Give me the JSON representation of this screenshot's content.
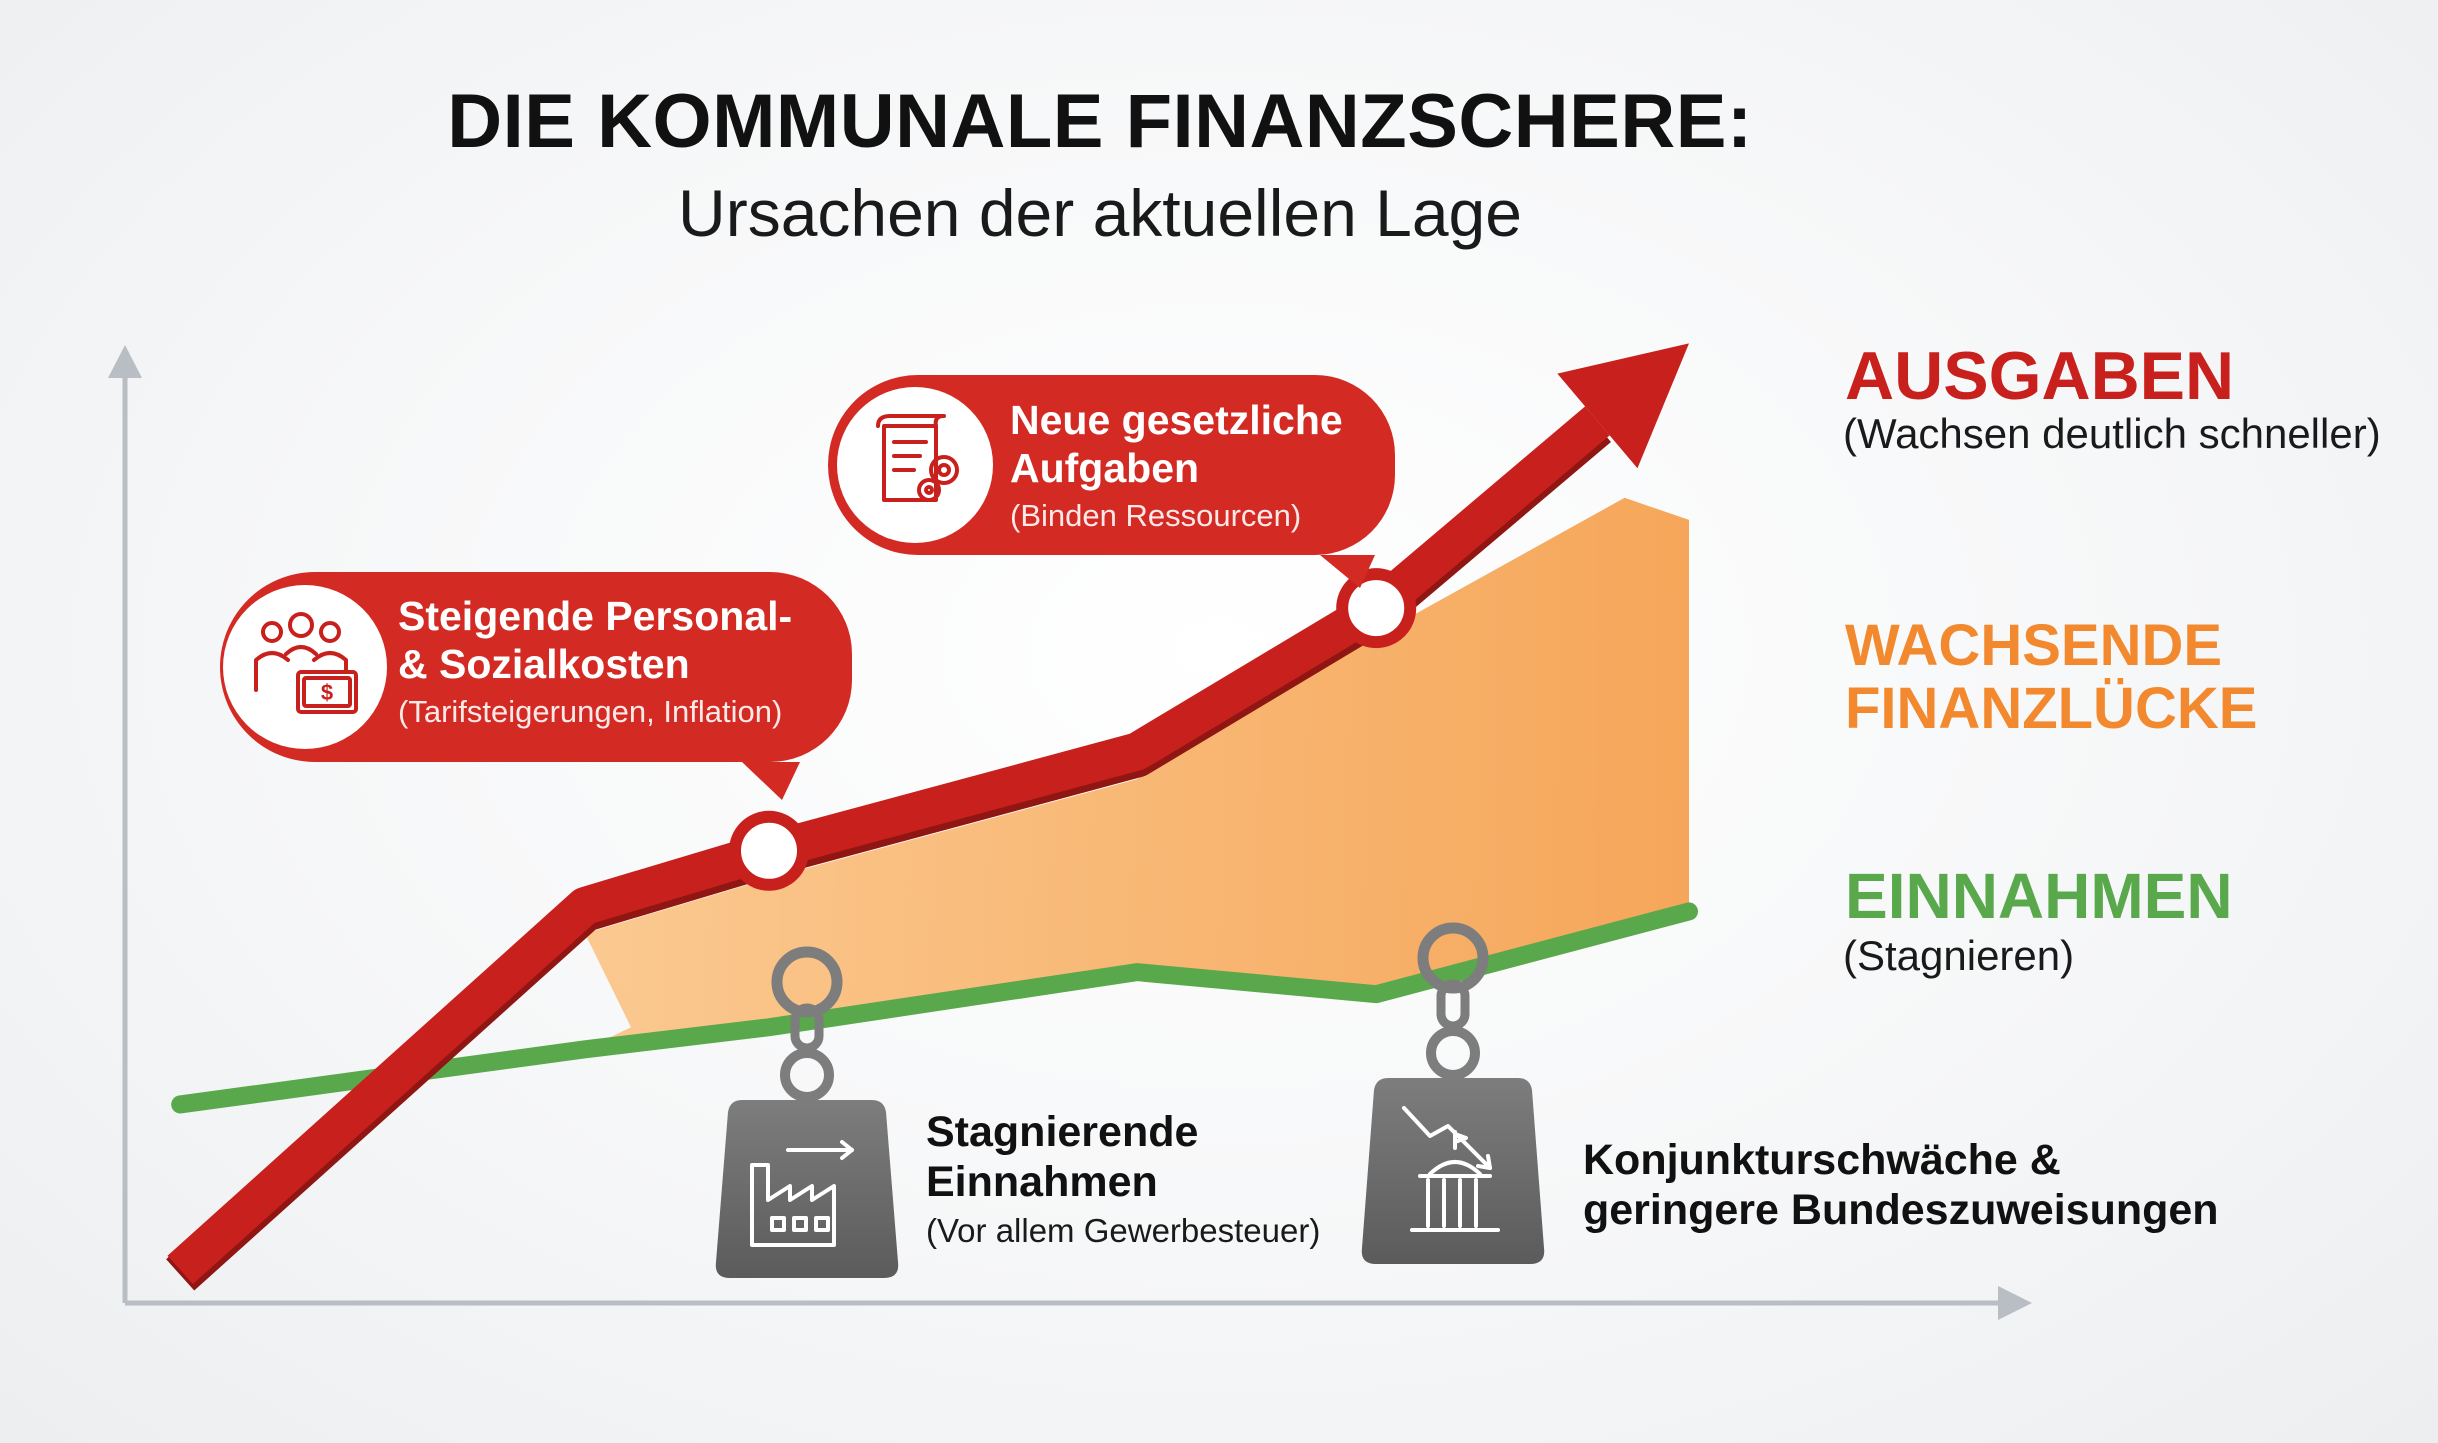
{
  "title": "DIE KOMMUNALE FINANZSCHERE:",
  "subtitle": "Ursachen der aktuellen Lage",
  "colors": {
    "ausgaben": "#c8201c",
    "finanzluecke": "#f7a350",
    "einnahmen": "#5aa84c",
    "axis": "#b9bec4",
    "weight": "#6d6d6d"
  },
  "chart_data": {
    "type": "line",
    "title": "DIE KOMMUNALE FINANZSCHERE:",
    "subtitle": "Ursachen der aktuellen Lage",
    "xlabel": "",
    "ylabel": "",
    "axis_tick_labels": false,
    "grid": false,
    "values_are_relative": true,
    "xlim": [
      0,
      10
    ],
    "ylim": [
      0,
      10
    ],
    "series": [
      {
        "name": "AUSGABEN",
        "description": "(Wachsen deutlich schneller)",
        "color": "#c8201c",
        "style": "arrow",
        "x": [
          0.3,
          2.5,
          3.5,
          5.5,
          6.8,
          8.5
        ],
        "y": [
          0.3,
          3.6,
          4.1,
          5.0,
          6.3,
          8.7
        ]
      },
      {
        "name": "EINNAHMEN",
        "description": "(Stagnieren)",
        "color": "#5aa84c",
        "style": "line",
        "x": [
          0.3,
          2.5,
          3.5,
          5.5,
          6.8,
          8.5
        ],
        "y": [
          1.8,
          2.3,
          2.5,
          3.0,
          2.8,
          3.55
        ]
      }
    ],
    "area": {
      "name": "WACHSENDE FINANZLÜCKE",
      "color": "#f7a350",
      "between": [
        "AUSGABEN",
        "EINNAHMEN"
      ],
      "x_start": 2.5,
      "upper_end_y": 7.1
    },
    "annotations": [
      {
        "title": "Steigende Personal- & Sozialkosten",
        "subtitle": "(Tarifsteigerungen, Inflation)",
        "attached_to": "AUSGABEN",
        "x": 3.5,
        "kind": "callout",
        "icon": "people-money-icon"
      },
      {
        "title": "Neue gesetzliche Aufgaben",
        "subtitle": "(Binden Ressourcen)",
        "attached_to": "AUSGABEN",
        "x": 6.8,
        "kind": "callout",
        "icon": "document-gears-icon"
      },
      {
        "title": "Stagnierende Einnahmen",
        "subtitle": "(Vor allem Gewerbesteuer)",
        "attached_to": "EINNAHMEN",
        "x": 3.5,
        "kind": "weight",
        "icon": "factory-icon"
      },
      {
        "title": "Konjunkturschwäche & geringere Bundeszuweisungen",
        "subtitle": "",
        "attached_to": "EINNAHMEN",
        "x": 6.8,
        "kind": "weight",
        "icon": "government-building-icon"
      }
    ]
  },
  "labels": {
    "ausgaben": {
      "title": "AUSGABEN",
      "sub": "(Wachsen deutlich schneller)"
    },
    "luecke": {
      "line1": "WACHSENDE",
      "line2": "FINANZLÜCKE"
    },
    "einnahmen": {
      "title": "EINNAHMEN",
      "sub": "(Stagnieren)"
    }
  },
  "callouts": [
    {
      "line1": "Steigende Personal-",
      "line2": "& Sozialkosten",
      "sub": "(Tarifsteigerungen, Inflation)"
    },
    {
      "line1": "Neue gesetzliche",
      "line2": "Aufgaben",
      "sub": "(Binden Ressourcen)"
    }
  ],
  "weights": [
    {
      "line1": "Stagnierende",
      "line2": "Einnahmen",
      "sub": "(Vor allem Gewerbesteuer)"
    },
    {
      "line1": "Konjunkturschwäche &",
      "line2": "geringere Bundeszuweisungen",
      "sub": ""
    }
  ]
}
